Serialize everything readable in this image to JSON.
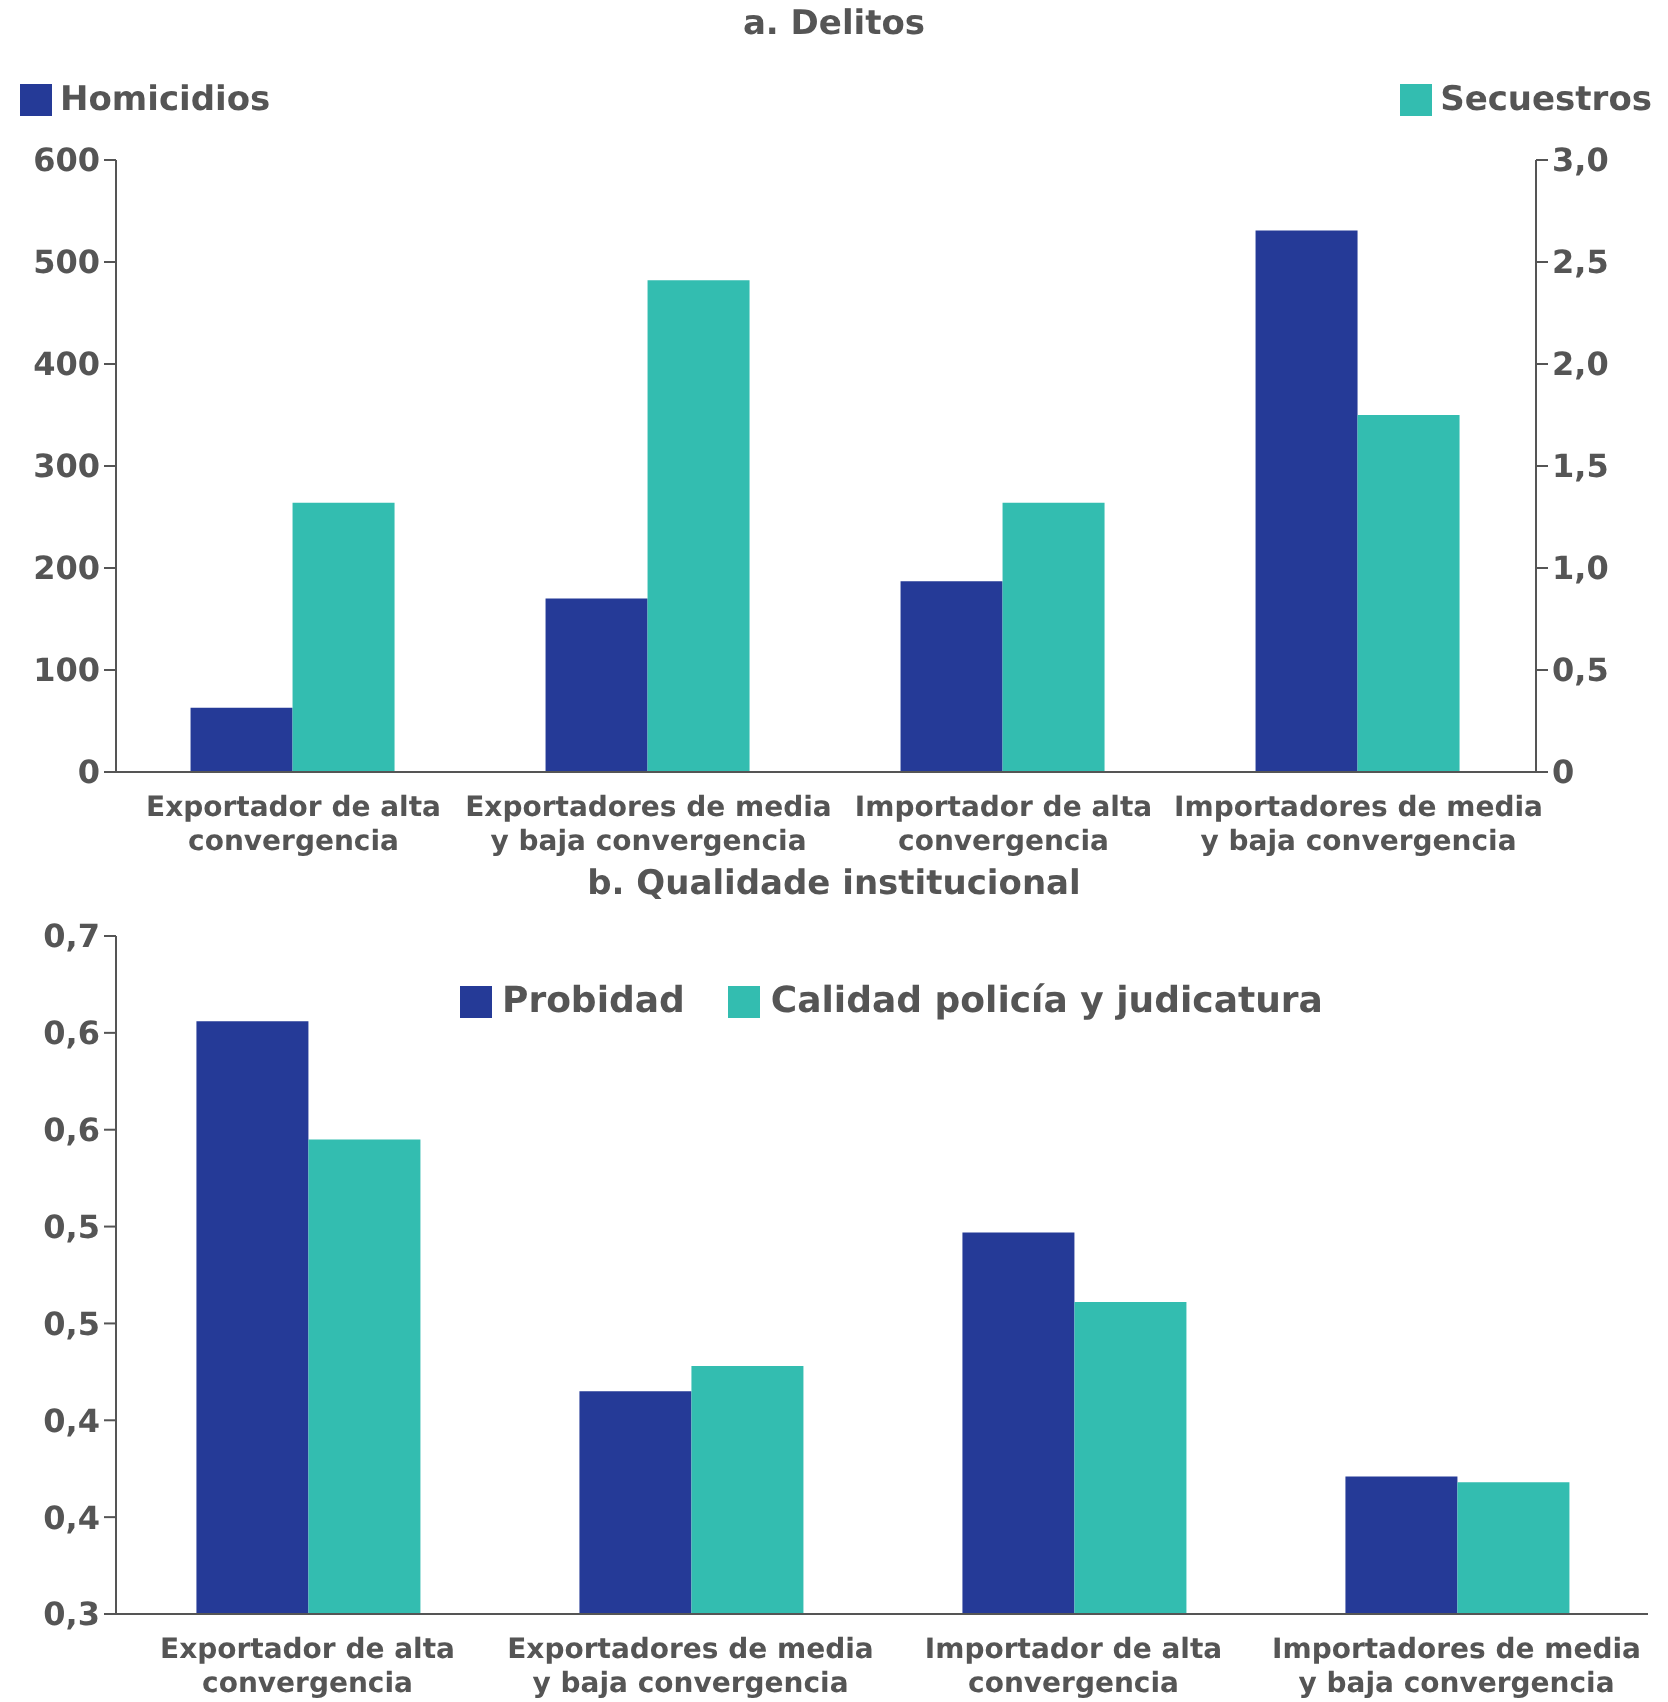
{
  "chart_data": [
    {
      "type": "bar",
      "title": "a. Delitos",
      "categories": [
        "Exportador de alta convergencia",
        "Exportadores de media y baja convergencia",
        "Importador de alta convergencia",
        "Importadores de media y baja convergencia"
      ],
      "series": [
        {
          "name": "Homicidios",
          "color": "#253a97",
          "values": [
            63,
            170,
            187,
            531
          ]
        },
        {
          "name": "Secuestros",
          "color": "#33bdb0",
          "values": [
            1.32,
            2.41,
            1.32,
            1.75
          ],
          "axis": "y2"
        }
      ],
      "ylim": [
        0,
        600
      ],
      "yticks": [
        0,
        100,
        200,
        300,
        400,
        500,
        600
      ],
      "y2lim": [
        0,
        3
      ],
      "y2ticks": [
        0,
        {
          "value": 0.5,
          "label": "0,5"
        },
        {
          "value": 1,
          "label": "1,0"
        },
        {
          "value": 1.5,
          "label": "1,5"
        },
        {
          "value": 2,
          "label": "2,0"
        },
        {
          "value": 2.5,
          "label": "2,5"
        },
        {
          "value": 3,
          "label": "3,0"
        }
      ],
      "legend": "top"
    },
    {
      "type": "bar",
      "title": "b. Qualidade institucional",
      "categories": [
        "Exportador de alta convergencia",
        "Exportadores de media y baja convergencia",
        "Importador de alta convergencia",
        "Importadores de media y baja convergencia"
      ],
      "series": [
        {
          "name": "Probidad",
          "color": "#253a97",
          "values": [
            0.606,
            0.415,
            0.497,
            0.371
          ]
        },
        {
          "name": "Calidad policía y judicatura",
          "color": "#33bdb0",
          "values": [
            0.545,
            0.428,
            0.461,
            0.368
          ]
        }
      ],
      "ylim": [
        0.3,
        0.65
      ],
      "yticks": [
        {
          "value": 0.3,
          "label": "0,3"
        },
        {
          "value": 0.35,
          "label": "0,4"
        },
        {
          "value": 0.4,
          "label": "0,4"
        },
        {
          "value": 0.45,
          "label": "0,5"
        },
        {
          "value": 0.5,
          "label": "0,5"
        },
        {
          "value": 0.55,
          "label": "0,6"
        },
        {
          "value": 0.6,
          "label": "0,6"
        },
        {
          "value": 0.65,
          "label": "0,7"
        }
      ],
      "legend": "top"
    }
  ]
}
